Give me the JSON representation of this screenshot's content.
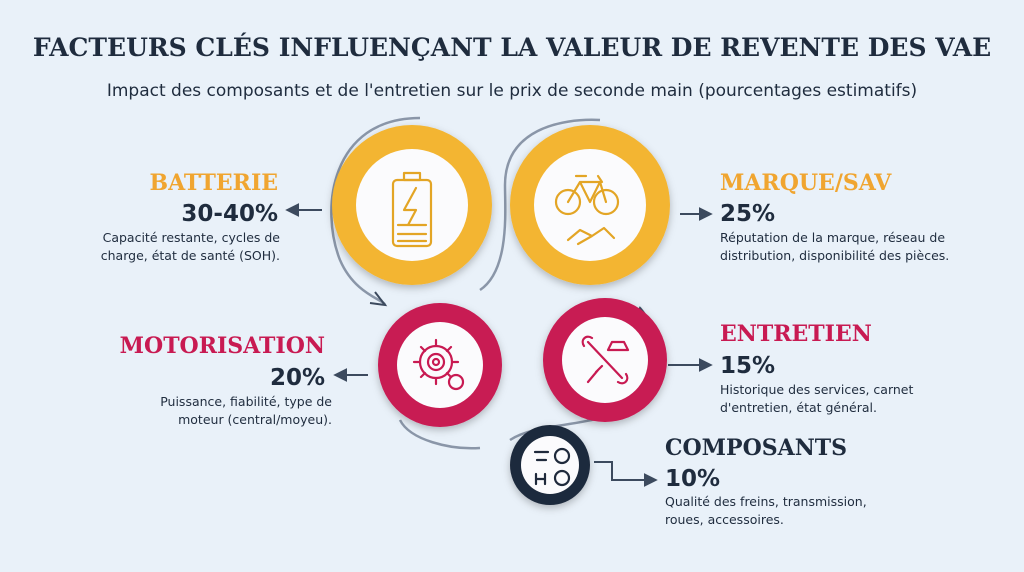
{
  "header": {
    "title": "FACTEURS CLÉS INFLUENÇANT LA VALEUR DE REVENTE DES VAE",
    "subtitle": "Impact des composants et de l'entretien sur le prix de seconde main (pourcentages estimatifs)"
  },
  "factors": [
    {
      "label": "BATTERIE",
      "value": "30-40%",
      "description": [
        "Capacité restante, cycles de",
        "charge, état de santé (SOH)."
      ]
    },
    {
      "label": "MARQUE/SAV",
      "value": "25%",
      "description": [
        "Réputation de la marque, réseau de",
        "distribution, disponibilité des pièces."
      ]
    },
    {
      "label": "MOTORISATION",
      "value": "20%",
      "description": [
        "Puissance, fiabilité, type de",
        "moteur (central/moyeu)."
      ]
    },
    {
      "label": "ENTRETIEN",
      "value": "15%",
      "description": [
        "Historique des services, carnet",
        "d'entretien, état général."
      ]
    },
    {
      "label": "COMPOSANTS",
      "value": "10%",
      "description": [
        "Qualité des freins, transmission,",
        "roues, accessoires."
      ]
    }
  ]
}
